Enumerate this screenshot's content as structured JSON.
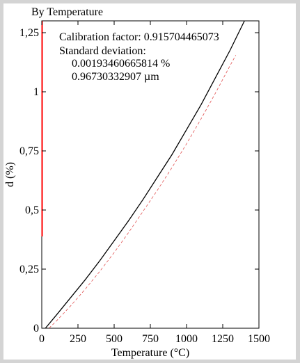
{
  "chart_data": {
    "type": "line",
    "title": "By Temperature",
    "xlabel": "Temperature (°C)",
    "ylabel": "d (%)",
    "xlim": [
      0,
      1500
    ],
    "ylim": [
      0,
      1.3
    ],
    "x_ticks": [
      0,
      250,
      500,
      750,
      1000,
      1250,
      1500
    ],
    "x_tick_labels": [
      "0",
      "250",
      "500",
      "750",
      "1000",
      "1250",
      "1500"
    ],
    "y_ticks": [
      0,
      0.25,
      0.5,
      0.75,
      1,
      1.25
    ],
    "y_tick_labels": [
      "0",
      "0,25",
      "0,5",
      "0,75",
      "1",
      "1,25"
    ],
    "grid": false,
    "annotations": {
      "calibration": "Calibration factor: 0.915704465073",
      "std_label": "Standard deviation:",
      "std_percent": "0.00193460665814 %",
      "std_um": "0.96730332907 µm"
    },
    "series": [
      {
        "color": "#000000",
        "style": "solid",
        "x": [
          25,
          100,
          200,
          300,
          400,
          500,
          600,
          700,
          800,
          900,
          1000,
          1100,
          1200,
          1300,
          1400
        ],
        "y": [
          0,
          0.055,
          0.13,
          0.205,
          0.285,
          0.37,
          0.455,
          0.545,
          0.64,
          0.735,
          0.84,
          0.945,
          1.06,
          1.175,
          1.3
        ]
      },
      {
        "color": "#e05050",
        "style": "dashed",
        "x": [
          50,
          100,
          200,
          300,
          400,
          500,
          600,
          700,
          800,
          900,
          1000,
          1100,
          1200,
          1300,
          1340
        ],
        "y": [
          0,
          0.03,
          0.095,
          0.165,
          0.24,
          0.32,
          0.405,
          0.495,
          0.585,
          0.68,
          0.78,
          0.885,
          0.995,
          1.11,
          1.155
        ]
      }
    ]
  },
  "colors": {
    "background": "#d4d4d4",
    "plot_background": "#ffffff",
    "left_axis_marker": "#ff0000"
  }
}
